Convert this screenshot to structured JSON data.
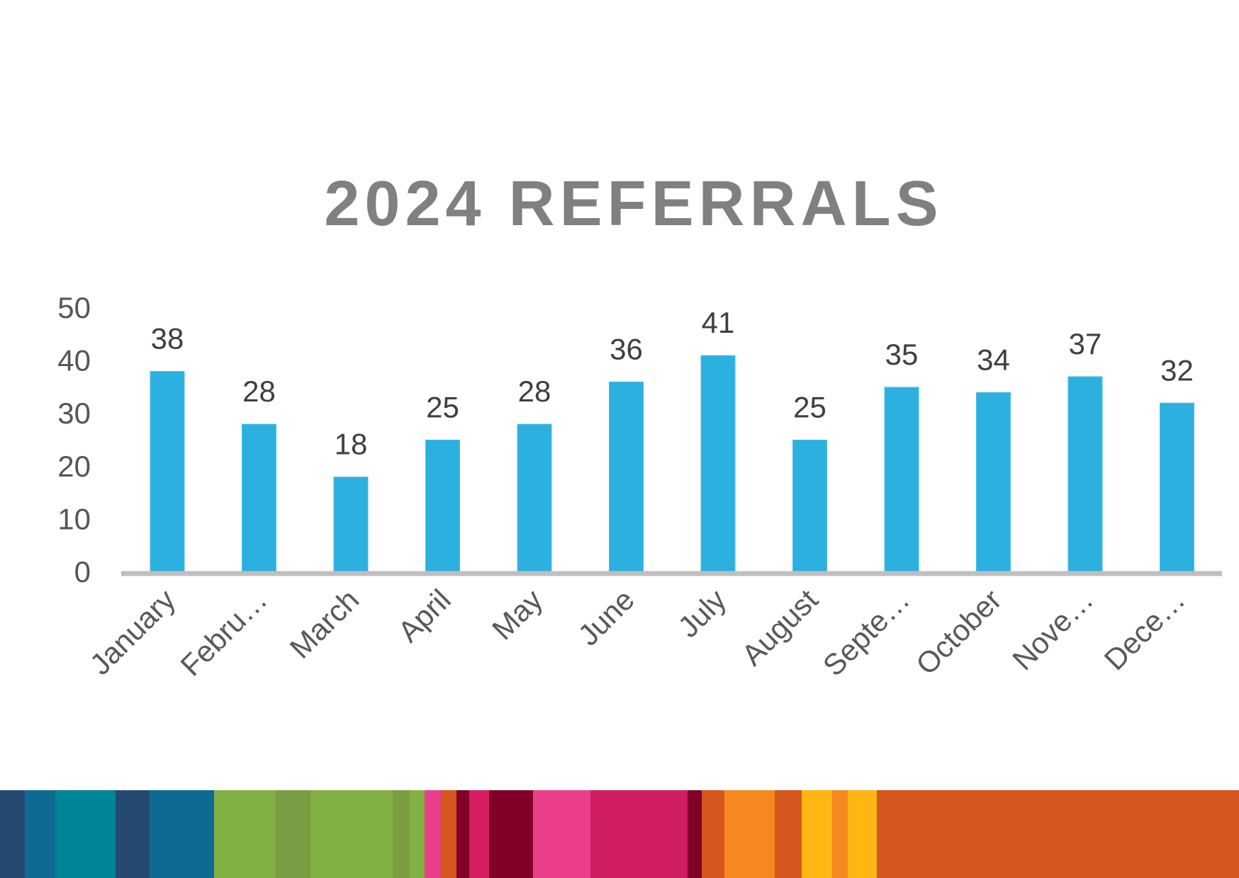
{
  "chart_data": {
    "type": "bar",
    "title": "2024 REFERRALS",
    "categories": [
      "January",
      "Febru…",
      "March",
      "April",
      "May",
      "June",
      "July",
      "August",
      "Septe…",
      "October",
      "Nove…",
      "Dece…"
    ],
    "values": [
      38,
      28,
      18,
      25,
      28,
      36,
      41,
      25,
      35,
      34,
      37,
      32
    ],
    "yticks": [
      "0",
      "10",
      "20",
      "30",
      "40",
      "50"
    ],
    "ylim": [
      0,
      50
    ],
    "xlabel": "",
    "ylabel": "",
    "grid": false,
    "legend": "none",
    "data_labels": true,
    "bar_color": "#2cb0df",
    "axis_color": "#bfbfbf"
  },
  "footer_stripe": {
    "colors": [
      "#244a72",
      "#0e6a93",
      "#008497",
      "#244a72",
      "#0e6a93",
      "#82b043",
      "#7a9c42",
      "#82b043",
      "#7a9c42",
      "#82b043",
      "#eb3f8b",
      "#d5561f",
      "#810027",
      "#d61e63",
      "#810027",
      "#eb3f8b",
      "#d11e62",
      "#810027",
      "#d5561f",
      "#f5891f",
      "#d5561f",
      "#fdb614",
      "#f5891f",
      "#fdb614",
      "#d5561f"
    ]
  }
}
